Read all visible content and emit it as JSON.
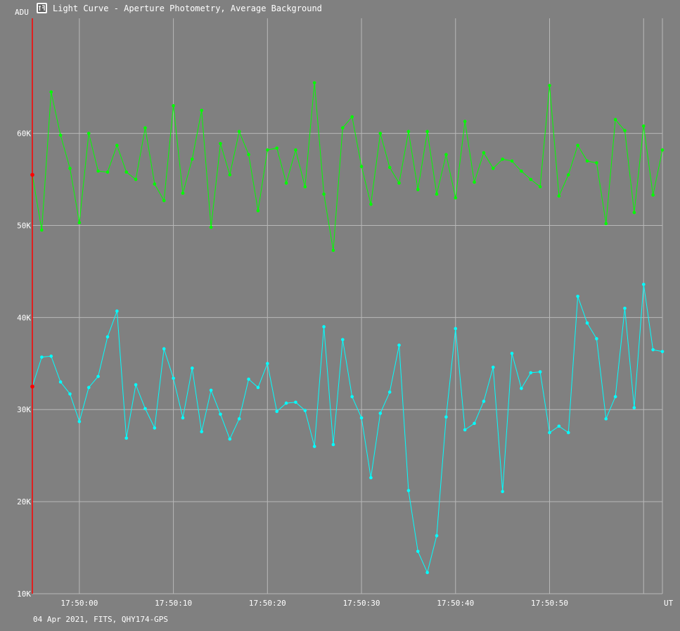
{
  "window": {
    "title": "Light Curve - Aperture Photometry, Average Background",
    "icon": "light-curve-app-icon"
  },
  "footer": {
    "info": "04 Apr 2021, FITS, QHY174-GPS"
  },
  "colors": {
    "background": "#808080",
    "grid": "#b8b8b8",
    "series_green": "#00ff00",
    "series_cyan": "#00ffff",
    "cursor": "#ff0000",
    "text": "#ffffff"
  },
  "chart_data": {
    "type": "line",
    "title": "Light Curve - Aperture Photometry, Average Background",
    "ylabel": "ADU",
    "xlabel": "UT",
    "ylim": [
      10000,
      72500
    ],
    "xlim": [
      -5,
      62
    ],
    "x_unit": "seconds after 17:50:00 UT",
    "y_ticks": [
      {
        "value": 10000,
        "label": "10K"
      },
      {
        "value": 20000,
        "label": "20K"
      },
      {
        "value": 30000,
        "label": "30K"
      },
      {
        "value": 40000,
        "label": "40K"
      },
      {
        "value": 50000,
        "label": "50K"
      },
      {
        "value": 60000,
        "label": "60K"
      }
    ],
    "x_ticks": [
      {
        "value": 0,
        "label": "17:50:00"
      },
      {
        "value": 10,
        "label": "17:50:10"
      },
      {
        "value": 20,
        "label": "17:50:20"
      },
      {
        "value": 30,
        "label": "17:50:30"
      },
      {
        "value": 40,
        "label": "17:50:40"
      },
      {
        "value": 50,
        "label": "17:50:50"
      }
    ],
    "extra_vlines": [
      60
    ],
    "grid": true,
    "cursor_x": -5,
    "x": [
      -5,
      -4,
      -3,
      -2,
      -1,
      0,
      1,
      2,
      3,
      4,
      5,
      6,
      7,
      8,
      9,
      10,
      11,
      12,
      13,
      14,
      15,
      16,
      17,
      18,
      19,
      20,
      21,
      22,
      23,
      24,
      25,
      26,
      27,
      28,
      29,
      30,
      31,
      32,
      33,
      34,
      35,
      36,
      37,
      38,
      39,
      40,
      41,
      42,
      43,
      44,
      45,
      46,
      47,
      48,
      49,
      50,
      51,
      52,
      53,
      54,
      55,
      56,
      57,
      58,
      59,
      60,
      61,
      62
    ],
    "series": [
      {
        "color": "#00ff00",
        "values": [
          55500,
          49500,
          64500,
          59800,
          56200,
          50300,
          60000,
          55900,
          55800,
          58700,
          55800,
          55000,
          60600,
          54500,
          52700,
          63000,
          53500,
          57200,
          62500,
          49800,
          58900,
          55500,
          60200,
          57700,
          51600,
          58200,
          58400,
          54600,
          58200,
          54200,
          65500,
          53400,
          47300,
          60600,
          61800,
          56400,
          52300,
          60000,
          56300,
          54600,
          60200,
          53900,
          60200,
          53400,
          57700,
          53000,
          61300,
          54700,
          57900,
          56200,
          57200,
          57000,
          55900,
          55000,
          54200,
          65200,
          53200,
          55500,
          58700,
          57000,
          56800,
          50200,
          61500,
          60300,
          51400,
          60800,
          53300,
          58200
        ]
      },
      {
        "color": "#00ffff",
        "values": [
          32500,
          35700,
          35800,
          33000,
          31700,
          28700,
          32400,
          33600,
          37900,
          40700,
          26900,
          32700,
          30100,
          28000,
          36600,
          33400,
          29100,
          34500,
          27600,
          32100,
          29500,
          26800,
          29000,
          33300,
          32400,
          35000,
          29800,
          30700,
          30800,
          29900,
          26000,
          39000,
          26200,
          37600,
          31400,
          29100,
          22600,
          29600,
          31900,
          37000,
          21200,
          14600,
          12300,
          16300,
          29200,
          38800,
          27800,
          28500,
          30900,
          34600,
          21100,
          36100,
          32300,
          34000,
          34100,
          27500,
          28200,
          27500,
          42300,
          39400,
          37700,
          29000,
          31400,
          41000,
          30200,
          43600,
          36500,
          36300
        ]
      }
    ]
  }
}
